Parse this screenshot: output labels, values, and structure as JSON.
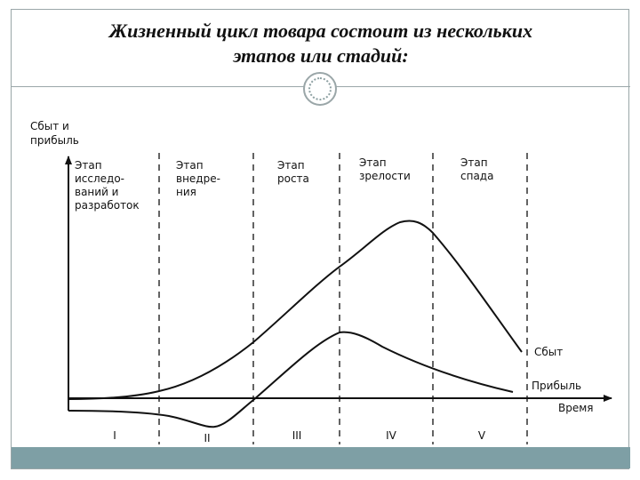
{
  "title": {
    "line1": "Жизненный цикл товара состоит из нескольких",
    "line2": "этапов или стадий:"
  },
  "chart_data": {
    "type": "line",
    "ylabel": [
      "Сбыт и",
      "прибыль"
    ],
    "xlabel": "Время",
    "stages": [
      {
        "lines": [
          "Этап",
          "исследо-",
          "ваний и",
          "разработок"
        ],
        "roman": "I"
      },
      {
        "lines": [
          "Этап",
          "внедре-",
          "ния"
        ],
        "roman": "II"
      },
      {
        "lines": [
          "Этап",
          "роста"
        ],
        "roman": "III"
      },
      {
        "lines": [
          "Этап",
          "зрелости"
        ],
        "roman": "IV"
      },
      {
        "lines": [
          "Этап",
          "спада"
        ],
        "roman": "V"
      }
    ],
    "series": [
      {
        "name": "Сбыт"
      },
      {
        "name": "Прибыль"
      }
    ]
  },
  "colors": {
    "footer": "#7e9fa5",
    "frame": "#9aa6a8",
    "ink": "#111111"
  }
}
